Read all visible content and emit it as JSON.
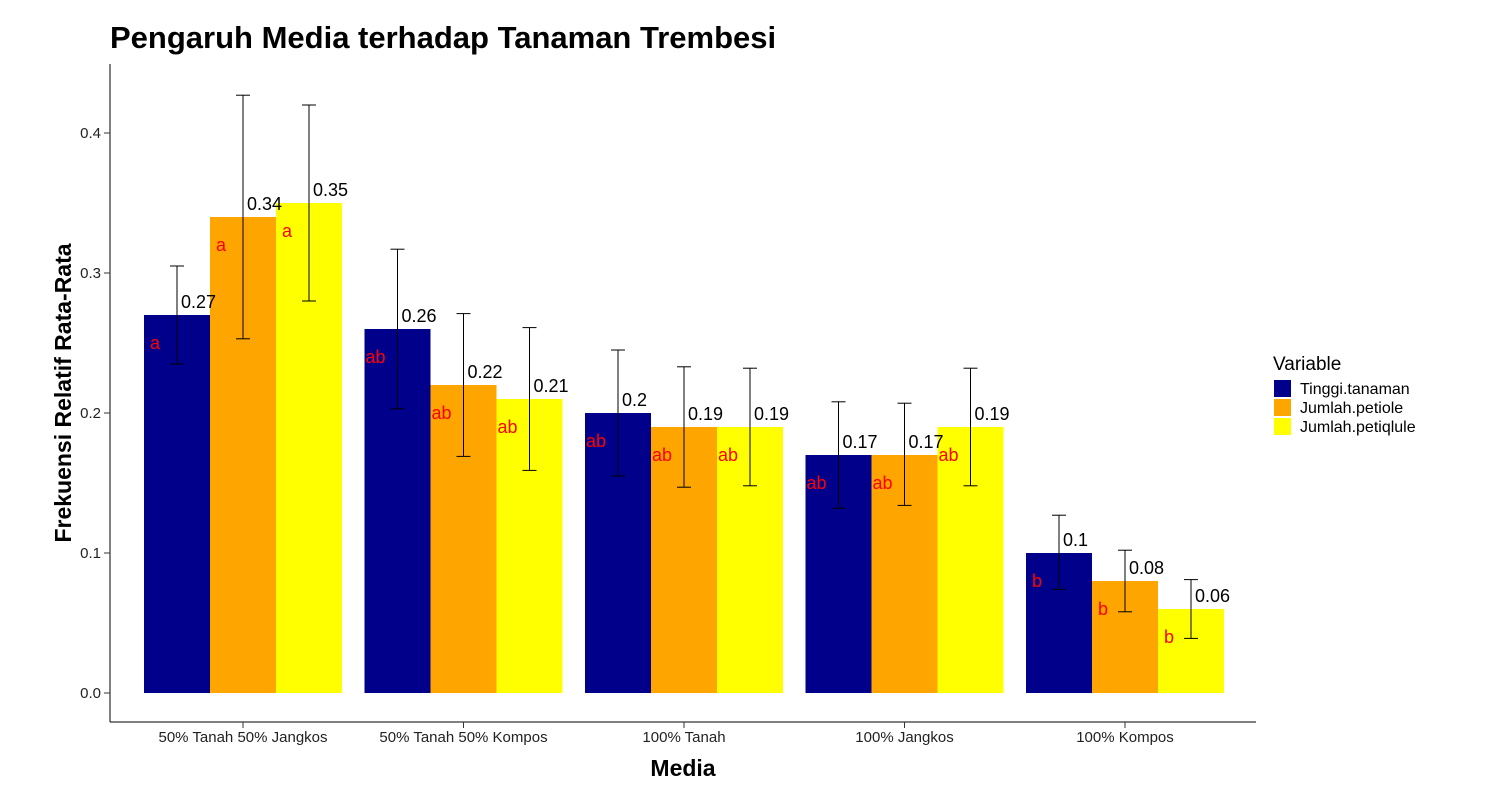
{
  "chart_data": {
    "type": "bar",
    "title": "Pengaruh Media terhadap Tanaman Trembesi",
    "xlabel": "Media",
    "ylabel": "Frekuensi Relatif Rata-Rata",
    "ylim": [
      0,
      0.44
    ],
    "yticks": [
      "0.0",
      "0.1",
      "0.2",
      "0.3",
      "0.4"
    ],
    "grid": false,
    "legend_position": "right",
    "legend_title": "Variable",
    "categories": [
      "50% Tanah 50% Jangkos",
      "50% Tanah 50% Kompos",
      "100% Tanah",
      "100% Jangkos",
      "100% Kompos"
    ],
    "series": [
      {
        "name": "Tinggi.tanaman",
        "color": "#00008B",
        "values": [
          0.27,
          0.26,
          0.2,
          0.17,
          0.1
        ],
        "value_labels": [
          "0.27",
          "0.26",
          "0.2",
          "0.17",
          "0.1"
        ],
        "err_low": [
          0.235,
          0.203,
          0.155,
          0.132,
          0.074
        ],
        "err_high": [
          0.305,
          0.317,
          0.245,
          0.208,
          0.127
        ],
        "letters": [
          "a",
          "ab",
          "ab",
          "ab",
          "b"
        ]
      },
      {
        "name": "Jumlah.petiole",
        "color": "#FFA500",
        "values": [
          0.34,
          0.22,
          0.19,
          0.17,
          0.08
        ],
        "value_labels": [
          "0.34",
          "0.22",
          "0.19",
          "0.17",
          "0.08"
        ],
        "err_low": [
          0.253,
          0.169,
          0.147,
          0.134,
          0.058
        ],
        "err_high": [
          0.427,
          0.271,
          0.233,
          0.207,
          0.102
        ],
        "letters": [
          "a",
          "ab",
          "ab",
          "ab",
          "b"
        ]
      },
      {
        "name": "Jumlah.petiqlule",
        "color": "#FFFF00",
        "values": [
          0.35,
          0.21,
          0.19,
          0.19,
          0.06
        ],
        "value_labels": [
          "0.35",
          "0.21",
          "0.19",
          "0.19",
          "0.06"
        ],
        "err_low": [
          0.28,
          0.159,
          0.148,
          0.148,
          0.039
        ],
        "err_high": [
          0.42,
          0.261,
          0.232,
          0.232,
          0.081
        ],
        "letters": [
          "a",
          "ab",
          "ab",
          "ab",
          "b"
        ]
      }
    ],
    "letter_color": "#FF0000"
  }
}
